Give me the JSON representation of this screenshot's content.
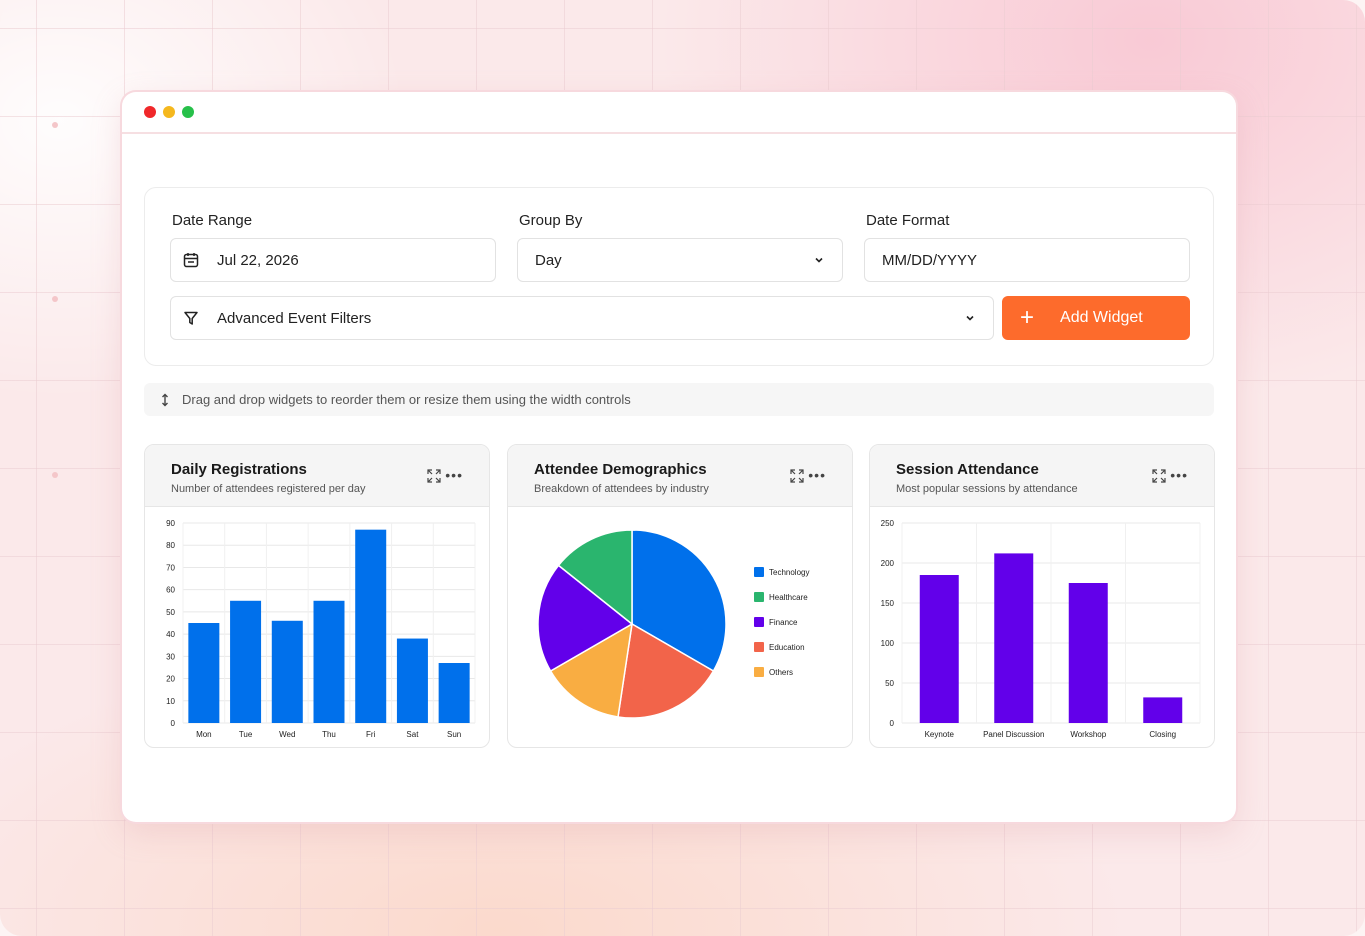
{
  "filters": {
    "date_range": {
      "label": "Date Range",
      "value": "Jul 22, 2026"
    },
    "group_by": {
      "label": "Group By",
      "value": "Day"
    },
    "date_format": {
      "label": "Date Format",
      "value": "MM/DD/YYYY"
    },
    "advanced": {
      "label": "Advanced Event Filters"
    },
    "add_widget_label": "Add Widget"
  },
  "hint": "Drag and drop widgets to reorder them or resize them using the width controls",
  "widgets": [
    {
      "title": "Daily Registrations",
      "subtitle": "Number of attendees registered per day"
    },
    {
      "title": "Attendee Demographics",
      "subtitle": "Breakdown of attendees by industry"
    },
    {
      "title": "Session Attendance",
      "subtitle": "Most popular sessions by attendance"
    }
  ],
  "colors": {
    "accent": "#fd6b2c",
    "blue": "#0070eb",
    "green": "#2ab56e",
    "purple": "#6200ea",
    "red": "#f2644a",
    "orange": "#f9ad42"
  },
  "chart_data": [
    {
      "type": "bar",
      "categories": [
        "Mon",
        "Tue",
        "Wed",
        "Thu",
        "Fri",
        "Sat",
        "Sun"
      ],
      "values": [
        45,
        55,
        46,
        55,
        87,
        38,
        27
      ],
      "ylim": [
        0,
        90
      ],
      "yticks": [
        0,
        10,
        20,
        30,
        40,
        50,
        60,
        70,
        80,
        90
      ],
      "grid": true,
      "color": "#0070eb"
    },
    {
      "type": "pie",
      "labels": [
        "Technology",
        "Healthcare",
        "Finance",
        "Education",
        "Others"
      ],
      "values": [
        35,
        15,
        20,
        20,
        15
      ],
      "slice_order_clockwise_from_top": [
        "Technology",
        "Education",
        "Others",
        "Finance",
        "Healthcare"
      ],
      "colors": [
        "#0070eb",
        "#2ab56e",
        "#6200ea",
        "#f2644a",
        "#f9ad42"
      ],
      "legend": "right"
    },
    {
      "type": "bar",
      "categories": [
        "Keynote",
        "Panel Discussion",
        "Workshop",
        "Closing"
      ],
      "values": [
        185,
        212,
        175,
        32
      ],
      "ylim": [
        0,
        250
      ],
      "yticks": [
        0,
        50,
        100,
        150,
        200,
        250
      ],
      "grid": true,
      "color": "#6200ea"
    }
  ]
}
